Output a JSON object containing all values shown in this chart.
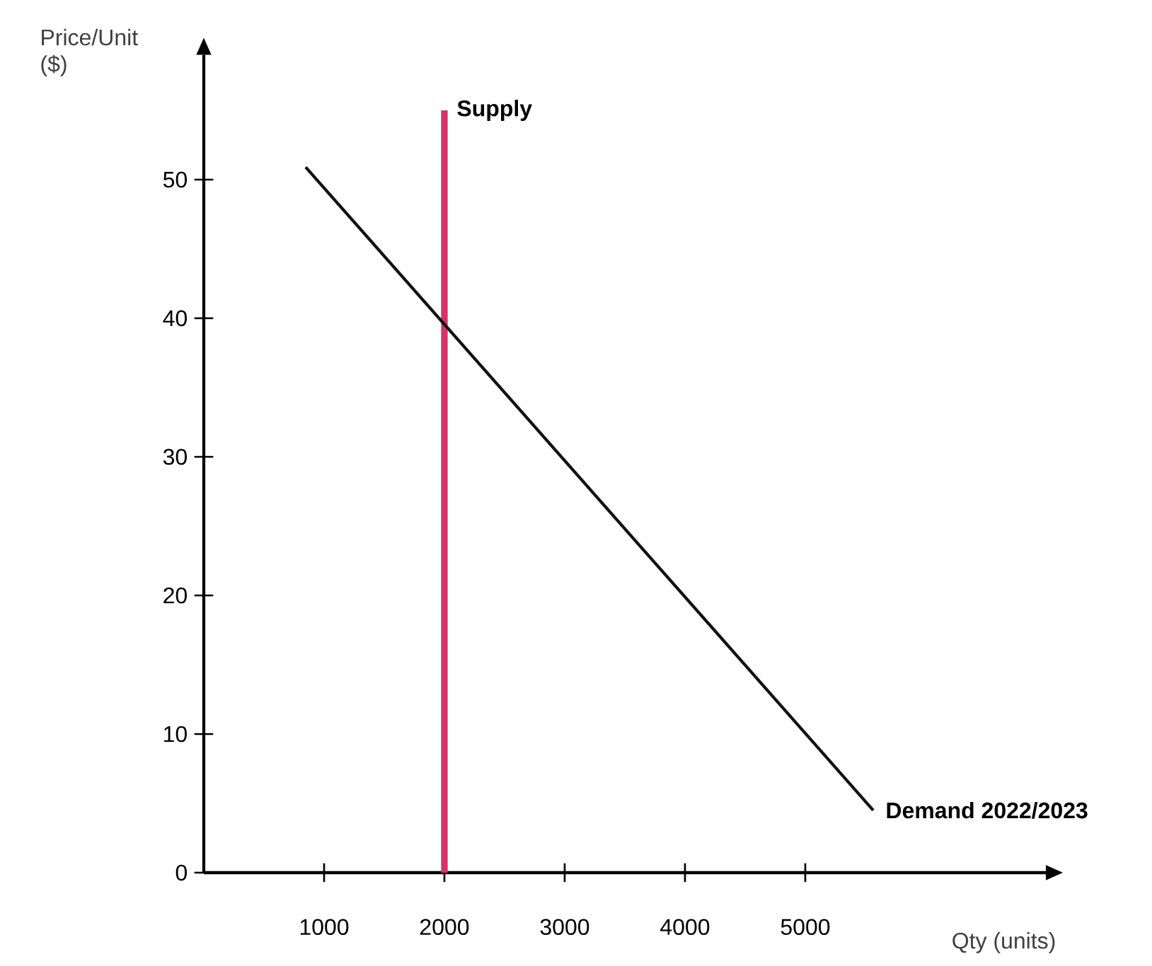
{
  "chart_data": {
    "type": "line",
    "xlabel": "Qty (units)",
    "ylabel": "Price/Unit ($)",
    "xlim": [
      0,
      7000
    ],
    "ylim": [
      0,
      59
    ],
    "xticks": [
      1000,
      2000,
      3000,
      4000,
      5000
    ],
    "yticks": [
      0,
      10,
      20,
      30,
      40,
      50
    ],
    "series": [
      {
        "name": "Supply",
        "color": "#d6336c",
        "x": [
          2000,
          2000
        ],
        "values": [
          0,
          55
        ]
      },
      {
        "name": "Demand 2022/2023",
        "color": "#111111",
        "x": [
          847,
          5565
        ],
        "values": [
          50.9,
          4.5
        ]
      }
    ],
    "grid": false
  }
}
